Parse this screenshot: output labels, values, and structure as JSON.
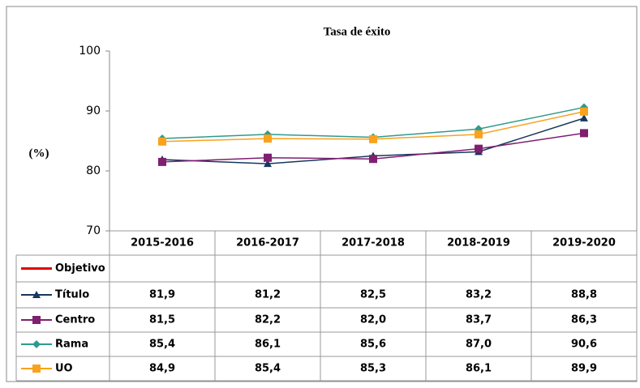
{
  "chart_data": {
    "type": "line",
    "title": "Tasa de éxito",
    "y_label": "(%)",
    "categories": [
      "2015-2016",
      "2016-2017",
      "2017-2018",
      "2018-2019",
      "2019-2020"
    ],
    "ylim": [
      70,
      100
    ],
    "yticks": [
      70,
      80,
      90,
      100
    ],
    "grid": false,
    "series": [
      {
        "name": "Objetivo",
        "color": "#e00000",
        "marker": "none",
        "values": [
          null,
          null,
          null,
          null,
          null
        ]
      },
      {
        "name": "Título",
        "color": "#17375e",
        "marker": "triangle",
        "values": [
          81.9,
          81.2,
          82.5,
          83.2,
          88.8
        ],
        "value_labels": [
          "81,9",
          "81,2",
          "82,5",
          "83,2",
          "88,8"
        ]
      },
      {
        "name": "Centro",
        "color": "#7f1f6f",
        "marker": "square",
        "values": [
          81.5,
          82.2,
          82.0,
          83.7,
          86.3
        ],
        "value_labels": [
          "81,5",
          "82,2",
          "82,0",
          "83,7",
          "86,3"
        ]
      },
      {
        "name": "Rama",
        "color": "#2e9a8f",
        "marker": "diamond",
        "values": [
          85.4,
          86.1,
          85.6,
          87.0,
          90.6
        ],
        "value_labels": [
          "85,4",
          "86,1",
          "85,6",
          "87,0",
          "90,6"
        ]
      },
      {
        "name": "UO",
        "color": "#f9a21b",
        "marker": "square",
        "values": [
          84.9,
          85.4,
          85.3,
          86.1,
          89.9
        ],
        "value_labels": [
          "84,9",
          "85,4",
          "85,3",
          "86,1",
          "89,9"
        ]
      }
    ]
  }
}
